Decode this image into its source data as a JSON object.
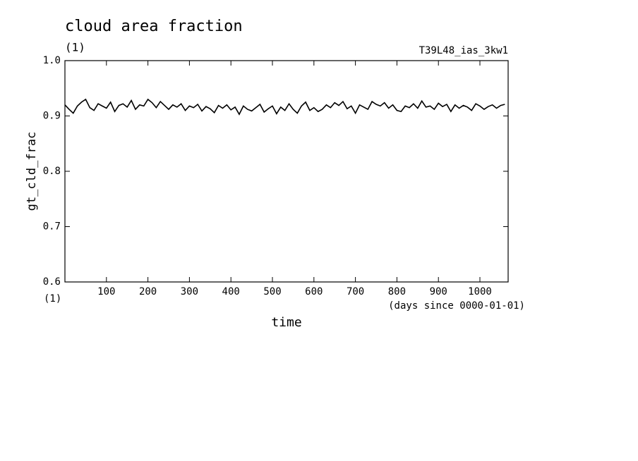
{
  "chart_data": {
    "type": "line",
    "title": "cloud area fraction",
    "subtitle": "(1)",
    "annotation": "T39L48_ias_3kw1",
    "y_label": "gt_cld_frac",
    "y_unit": "(1)",
    "x_label": "time",
    "x_unit": "(days since 0000-01-01)",
    "x": [
      0,
      10,
      20,
      30,
      40,
      50,
      60,
      70,
      80,
      90,
      100,
      110,
      120,
      130,
      140,
      150,
      160,
      170,
      180,
      190,
      200,
      210,
      220,
      230,
      240,
      250,
      260,
      270,
      280,
      290,
      300,
      310,
      320,
      330,
      340,
      350,
      360,
      370,
      380,
      390,
      400,
      410,
      420,
      430,
      440,
      450,
      460,
      470,
      480,
      490,
      500,
      510,
      520,
      530,
      540,
      550,
      560,
      570,
      580,
      590,
      600,
      610,
      620,
      630,
      640,
      650,
      660,
      670,
      680,
      690,
      700,
      710,
      720,
      730,
      740,
      750,
      760,
      770,
      780,
      790,
      800,
      810,
      820,
      830,
      840,
      850,
      860,
      870,
      880,
      890,
      900,
      910,
      920,
      930,
      940,
      950,
      960,
      970,
      980,
      990,
      1000,
      1010,
      1020,
      1030,
      1040,
      1050,
      1060
    ],
    "series": [
      {
        "name": "gt_cld_frac",
        "color": "#000000",
        "values": [
          0.92,
          0.912,
          0.905,
          0.918,
          0.925,
          0.93,
          0.915,
          0.91,
          0.922,
          0.918,
          0.914,
          0.925,
          0.908,
          0.919,
          0.922,
          0.916,
          0.928,
          0.912,
          0.92,
          0.918,
          0.93,
          0.924,
          0.915,
          0.926,
          0.919,
          0.912,
          0.92,
          0.916,
          0.922,
          0.91,
          0.918,
          0.915,
          0.921,
          0.909,
          0.917,
          0.913,
          0.906,
          0.919,
          0.914,
          0.92,
          0.911,
          0.916,
          0.903,
          0.918,
          0.912,
          0.909,
          0.915,
          0.921,
          0.907,
          0.913,
          0.918,
          0.904,
          0.916,
          0.91,
          0.922,
          0.912,
          0.905,
          0.918,
          0.925,
          0.91,
          0.915,
          0.908,
          0.912,
          0.92,
          0.915,
          0.924,
          0.919,
          0.926,
          0.913,
          0.918,
          0.905,
          0.92,
          0.916,
          0.912,
          0.926,
          0.921,
          0.918,
          0.924,
          0.914,
          0.92,
          0.91,
          0.908,
          0.918,
          0.915,
          0.922,
          0.914,
          0.927,
          0.916,
          0.918,
          0.912,
          0.923,
          0.917,
          0.921,
          0.908,
          0.92,
          0.914,
          0.919,
          0.916,
          0.91,
          0.922,
          0.918,
          0.912,
          0.917,
          0.92,
          0.914,
          0.919,
          0.921
        ]
      }
    ],
    "xlim": [
      0,
      1068
    ],
    "ylim": [
      0.6,
      1
    ],
    "xticks": [
      100,
      200,
      300,
      400,
      500,
      600,
      700,
      800,
      900,
      1000
    ],
    "yticks": [
      0.6,
      0.7,
      0.8,
      0.9,
      {
        "value": 1,
        "label": "1.0"
      }
    ]
  }
}
